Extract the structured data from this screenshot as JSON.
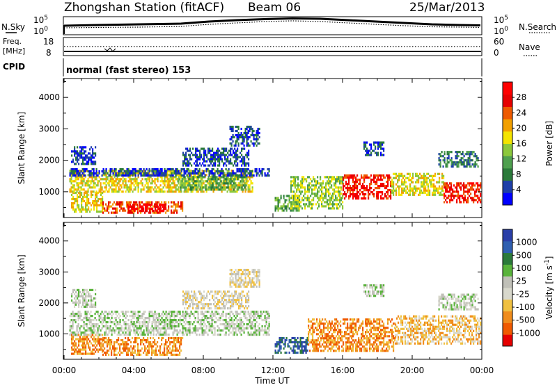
{
  "header": {
    "station": "Zhongshan Station (fitACF)",
    "beam": "Beam 06",
    "date": "25/Mar/2013"
  },
  "aux_panels": {
    "nsky_label": "N.Sky",
    "nsearch_label": "N.Search",
    "freq_label_top": "Freq.",
    "freq_label_unit": "[MHz]",
    "nave_label": "Nave",
    "cpid_label": "CPID",
    "cpid_value": "normal (fast stereo) 153",
    "noise_ticks": [
      "10^5",
      "10^0"
    ],
    "freq_ticks": [
      "18",
      "8"
    ],
    "nave_ticks": [
      "60",
      "0"
    ]
  },
  "colors": {
    "power_scale": [
      "#0000ff",
      "#1e3fa8",
      "#2b7a3a",
      "#4fa04f",
      "#8cc83c",
      "#f4e400",
      "#f2a000",
      "#ee5a00",
      "#e60000",
      "#ff0000"
    ],
    "velocity_scale": [
      "#2a3fa8",
      "#2f5fb0",
      "#2b7a3a",
      "#59b33b",
      "#c0c0b8",
      "#d8d8cc",
      "#f0c040",
      "#f08c1c",
      "#f05a00",
      "#e60000"
    ]
  },
  "chart_data": [
    {
      "type": "heatmap",
      "title": "Power",
      "ylabel": "Slant Range [km]",
      "xlabel": "Time UT",
      "x_ticks": [
        "00:00",
        "04:00",
        "08:00",
        "12:00",
        "16:00",
        "20:00",
        "00:00"
      ],
      "y_ticks": [
        1000,
        2000,
        3000,
        4000
      ],
      "ylim": [
        180,
        4600
      ],
      "xlim": [
        0,
        24
      ],
      "colorbar": {
        "label": "Power [dB]",
        "ticks": [
          4,
          8,
          12,
          16,
          20,
          24,
          28
        ],
        "range": [
          0,
          32
        ]
      },
      "regions": [
        {
          "t0": 0.4,
          "t1": 2.2,
          "r0": 350,
          "r1": 1000,
          "level": 5
        },
        {
          "t0": 2.2,
          "t1": 6.8,
          "r0": 350,
          "r1": 700,
          "level": 7
        },
        {
          "t0": 3.6,
          "t1": 5.8,
          "r0": 380,
          "r1": 620,
          "level": 9
        },
        {
          "t0": 0.3,
          "t1": 10.8,
          "r0": 1000,
          "r1": 1700,
          "level": 5
        },
        {
          "t0": 6.5,
          "t1": 10.5,
          "r0": 1050,
          "r1": 1500,
          "level": 3
        },
        {
          "t0": 0.3,
          "t1": 11.8,
          "r0": 1500,
          "r1": 1750,
          "level": 1
        },
        {
          "t0": 6.8,
          "t1": 10.6,
          "r0": 1850,
          "r1": 2400,
          "level": 1
        },
        {
          "t0": 9.5,
          "t1": 11.2,
          "r0": 2500,
          "r1": 3100,
          "level": 1
        },
        {
          "t0": 0.4,
          "t1": 1.8,
          "r0": 1900,
          "r1": 2450,
          "level": 1
        },
        {
          "t0": 12.1,
          "t1": 13.5,
          "r0": 400,
          "r1": 900,
          "level": 3
        },
        {
          "t0": 13.0,
          "t1": 16.0,
          "r0": 450,
          "r1": 1500,
          "level": 4
        },
        {
          "t0": 16.0,
          "t1": 18.8,
          "r0": 800,
          "r1": 1550,
          "level": 8
        },
        {
          "t0": 18.8,
          "t1": 21.8,
          "r0": 900,
          "r1": 1600,
          "level": 5
        },
        {
          "t0": 21.8,
          "t1": 23.9,
          "r0": 700,
          "r1": 1300,
          "level": 8
        },
        {
          "t0": 17.2,
          "t1": 18.4,
          "r0": 2200,
          "r1": 2600,
          "level": 1
        },
        {
          "t0": 21.5,
          "t1": 23.8,
          "r0": 1800,
          "r1": 2300,
          "level": 2
        }
      ]
    },
    {
      "type": "heatmap",
      "title": "Velocity",
      "ylabel": "Slant Range [km]",
      "xlabel": "Time UT",
      "x_ticks": [
        "00:00",
        "04:00",
        "08:00",
        "12:00",
        "16:00",
        "20:00",
        "00:00"
      ],
      "y_ticks": [
        1000,
        2000,
        3000,
        4000
      ],
      "ylim": [
        180,
        4600
      ],
      "xlim": [
        0,
        24
      ],
      "colorbar": {
        "label": "Velocity [m s^-1]",
        "ticks": [
          "1000",
          "500",
          "100",
          "25",
          "-25",
          "-100",
          "-500",
          "-1000"
        ]
      },
      "regions": [
        {
          "t0": 0.4,
          "t1": 2.2,
          "r0": 350,
          "r1": 1000,
          "level": 7
        },
        {
          "t0": 2.2,
          "t1": 6.8,
          "r0": 350,
          "r1": 900,
          "level": 7
        },
        {
          "t0": 0.3,
          "t1": 11.8,
          "r0": 1000,
          "r1": 1750,
          "level": 4
        },
        {
          "t0": 6.8,
          "t1": 10.6,
          "r0": 1850,
          "r1": 2400,
          "level": 5
        },
        {
          "t0": 9.5,
          "t1": 11.2,
          "r0": 2500,
          "r1": 3100,
          "level": 5
        },
        {
          "t0": 0.4,
          "t1": 1.8,
          "r0": 1900,
          "r1": 2450,
          "level": 4
        },
        {
          "t0": 12.1,
          "t1": 14.0,
          "r0": 400,
          "r1": 900,
          "level": 1
        },
        {
          "t0": 14.0,
          "t1": 19.0,
          "r0": 450,
          "r1": 1500,
          "level": 7
        },
        {
          "t0": 19.0,
          "t1": 23.9,
          "r0": 700,
          "r1": 1600,
          "level": 6
        },
        {
          "t0": 17.2,
          "t1": 18.4,
          "r0": 2200,
          "r1": 2600,
          "level": 4
        },
        {
          "t0": 21.5,
          "t1": 23.8,
          "r0": 1800,
          "r1": 2300,
          "level": 4
        }
      ]
    }
  ]
}
